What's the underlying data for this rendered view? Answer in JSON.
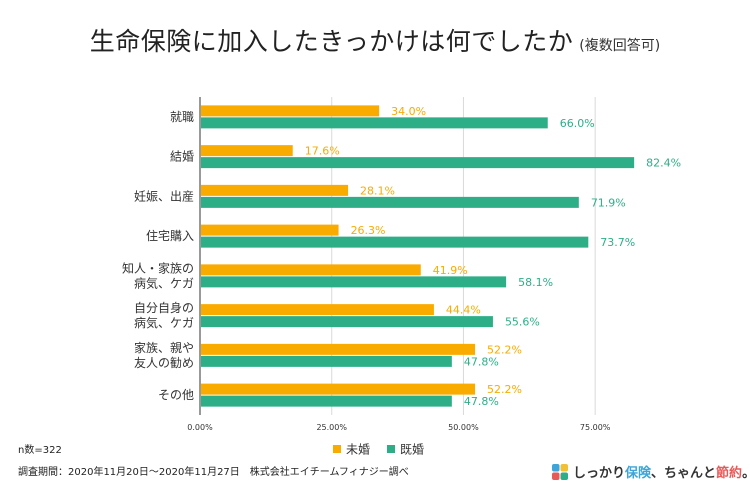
{
  "header": {
    "title": "生命保険に加入したきっかけは何でしたか",
    "subtitle": "(複数回答可)"
  },
  "chart_data": {
    "type": "bar",
    "orientation": "horizontal",
    "categories": [
      [
        "就職"
      ],
      [
        "結婚"
      ],
      [
        "妊娠、出産"
      ],
      [
        "住宅購入"
      ],
      [
        "知人・家族の",
        "病気、ケガ"
      ],
      [
        "自分自身の",
        "病気、ケガ"
      ],
      [
        "家族、親や",
        "友人の勧め"
      ],
      [
        "その他"
      ]
    ],
    "series": [
      {
        "name": "未婚",
        "color": "#F9AB00",
        "label_color": "#F9AB00",
        "values": [
          34.0,
          17.6,
          28.1,
          26.3,
          41.9,
          44.4,
          52.2,
          52.2
        ],
        "labels": [
          "34.0%",
          "17.6%",
          "28.1%",
          "26.3%",
          "41.9%",
          "44.4%",
          "52.2%",
          "52.2%"
        ]
      },
      {
        "name": "既婚",
        "color": "#2EAE87",
        "label_color": "#2EAE87",
        "values": [
          66.0,
          82.4,
          71.9,
          73.7,
          58.1,
          55.6,
          47.8,
          47.8
        ],
        "labels": [
          "66.0%",
          "82.4%",
          "71.9%",
          "73.7%",
          "58.1%",
          "55.6%",
          "47.8%",
          "47.8%"
        ]
      }
    ],
    "xlim": [
      0,
      93
    ],
    "xticks": [
      0,
      25,
      50,
      75
    ],
    "xtick_labels": [
      "0.00%",
      "25.00%",
      "50.00%",
      "75.00%"
    ],
    "grid": true,
    "legend_position": "bottom"
  },
  "footer": {
    "sample": "n数=322",
    "survey": "調査期間：2020年11月20日〜2020年11月27日　株式会社エイチームフィナジー調べ"
  },
  "logo": {
    "part1": "しっかり",
    "part2": "保険",
    "part3": "、ちゃんと",
    "part4": "節約",
    "part5": "。"
  }
}
